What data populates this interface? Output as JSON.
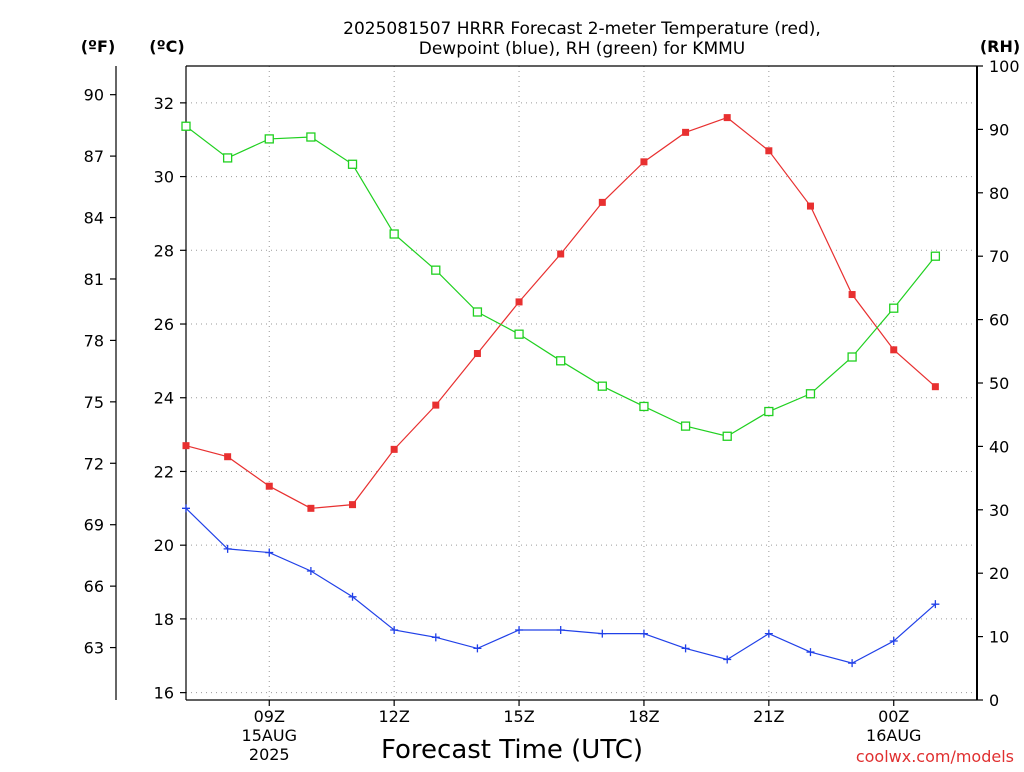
{
  "chart_data": {
    "type": "line",
    "title_line1": "2025081507 HRRR Forecast 2-meter Temperature (red),",
    "title_line2": "Dewpoint (blue), RH (green) for KMMU",
    "xlabel": "Forecast Time (UTC)",
    "credit": "coolwx.com/models",
    "left_outer_unit": "(ºF)",
    "left_inner_unit": "(ºC)",
    "right_unit": "(RH)",
    "x_start_hour": 7,
    "x_end_hour": 26,
    "y_celsius_lim": [
      15.8,
      33.0
    ],
    "y_rh_lim": [
      0,
      100
    ],
    "x_ticks": [
      {
        "hour": 9,
        "lines": [
          "09Z",
          "15AUG",
          "2025"
        ]
      },
      {
        "hour": 12,
        "lines": [
          "12Z"
        ]
      },
      {
        "hour": 15,
        "lines": [
          "15Z"
        ]
      },
      {
        "hour": 18,
        "lines": [
          "18Z"
        ]
      },
      {
        "hour": 21,
        "lines": [
          "21Z"
        ]
      },
      {
        "hour": 24,
        "lines": [
          "00Z",
          "16AUG"
        ]
      }
    ],
    "y_celsius_ticks": [
      16,
      18,
      20,
      22,
      24,
      26,
      28,
      30,
      32
    ],
    "y_fahrenheit_ticks": [
      63,
      66,
      69,
      72,
      75,
      78,
      81,
      84,
      87,
      90
    ],
    "y_rh_ticks": [
      0,
      10,
      20,
      30,
      40,
      50,
      60,
      70,
      80,
      90,
      100
    ],
    "x_hours": [
      7,
      8,
      9,
      10,
      11,
      12,
      13,
      14,
      15,
      16,
      17,
      18,
      19,
      20,
      21,
      22,
      23,
      24,
      25
    ],
    "series": [
      {
        "name": "2-meter Temperature",
        "axis": "celsius",
        "color": "#e83030",
        "marker": "filled-square",
        "values": [
          22.7,
          22.4,
          21.6,
          21.0,
          21.1,
          22.6,
          23.8,
          25.2,
          26.6,
          27.9,
          29.3,
          30.4,
          31.2,
          31.6,
          30.7,
          29.2,
          26.8,
          25.3,
          24.3
        ]
      },
      {
        "name": "Dewpoint",
        "axis": "celsius",
        "color": "#2040e8",
        "marker": "plus",
        "values": [
          21.0,
          19.9,
          19.8,
          19.3,
          18.6,
          17.7,
          17.5,
          17.2,
          17.7,
          17.7,
          17.6,
          17.6,
          17.2,
          16.9,
          17.6,
          17.1,
          16.8,
          17.4,
          18.4
        ]
      },
      {
        "name": "RH",
        "axis": "rh",
        "color": "#20d020",
        "marker": "open-square",
        "values": [
          90.5,
          85.5,
          88.5,
          88.8,
          84.5,
          73.5,
          67.8,
          61.2,
          57.7,
          53.5,
          49.5,
          46.3,
          43.2,
          41.6,
          45.5,
          48.3,
          54.1,
          61.8,
          70.0
        ]
      }
    ]
  }
}
